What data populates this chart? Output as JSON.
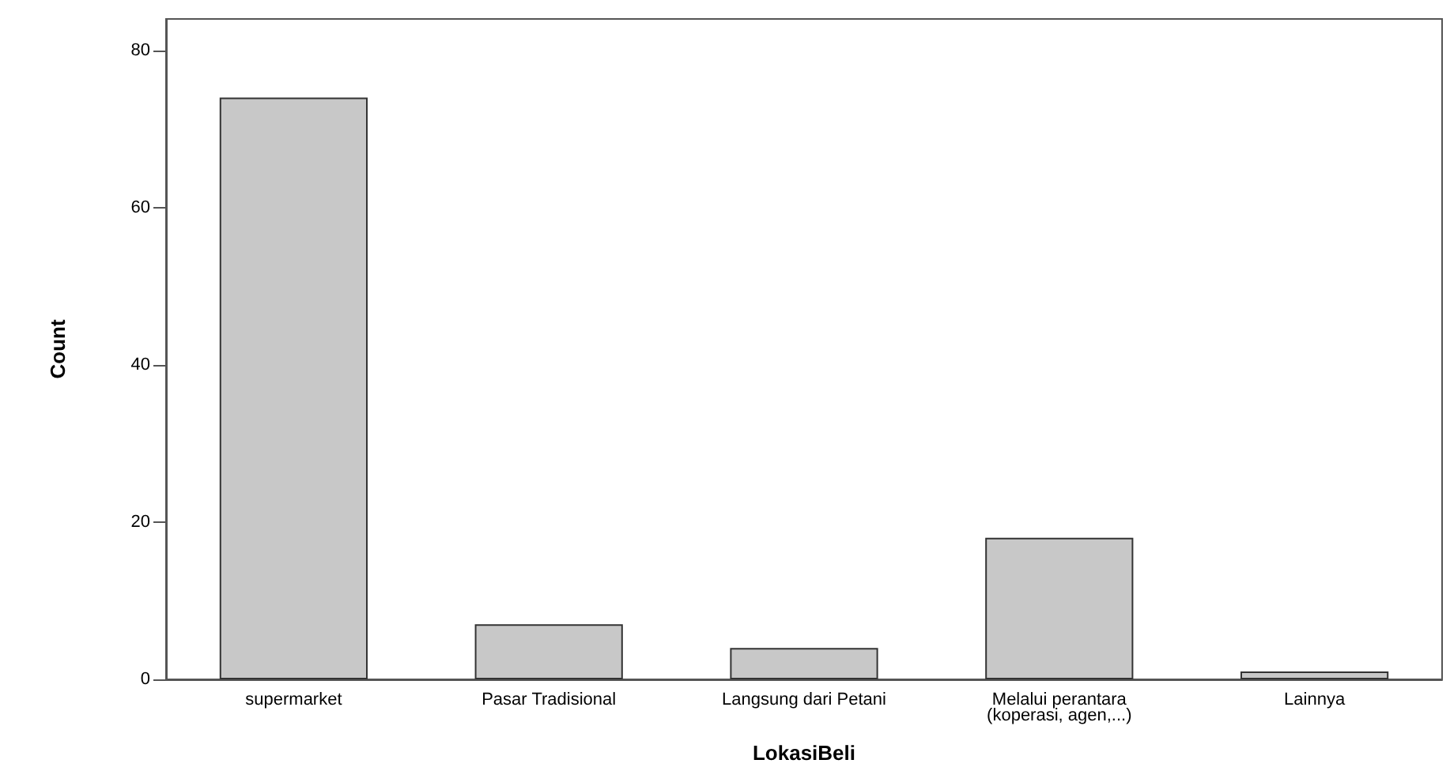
{
  "chart_data": {
    "type": "bar",
    "xlabel": "LokasiBeli",
    "ylabel": "Count",
    "categories": [
      "supermarket",
      "Pasar Tradisional",
      "Langsung dari Petani",
      "Melalui perantara\n(koperasi, agen,...)",
      "Lainnya"
    ],
    "values": [
      74,
      7,
      4,
      18,
      1
    ],
    "color": "#c8c8c8",
    "ylim": [
      0,
      84
    ],
    "yticks": [
      0,
      20,
      40,
      60,
      80
    ],
    "grid": false
  }
}
